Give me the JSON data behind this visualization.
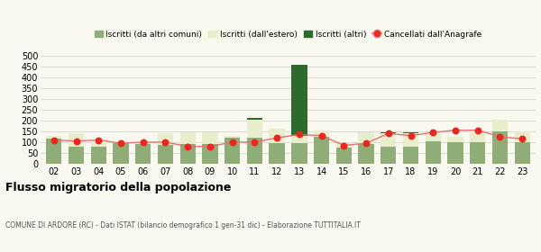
{
  "years": [
    "02",
    "03",
    "04",
    "05",
    "06",
    "07",
    "08",
    "09",
    "10",
    "11",
    "12",
    "13",
    "14",
    "15",
    "16",
    "17",
    "18",
    "19",
    "20",
    "21",
    "22",
    "23"
  ],
  "iscritti_altri_comuni": [
    115,
    80,
    78,
    95,
    92,
    88,
    90,
    90,
    120,
    120,
    95,
    95,
    125,
    75,
    90,
    80,
    80,
    105,
    100,
    100,
    150,
    100
  ],
  "iscritti_estero": [
    15,
    60,
    35,
    5,
    5,
    55,
    55,
    55,
    10,
    85,
    65,
    35,
    30,
    20,
    55,
    60,
    60,
    40,
    25,
    50,
    55,
    50
  ],
  "iscritti_altri": [
    0,
    0,
    0,
    0,
    0,
    0,
    0,
    0,
    0,
    5,
    0,
    325,
    0,
    0,
    0,
    5,
    5,
    0,
    0,
    0,
    0,
    0
  ],
  "cancellati": [
    110,
    105,
    110,
    95,
    100,
    100,
    80,
    80,
    100,
    100,
    120,
    135,
    130,
    85,
    95,
    140,
    130,
    145,
    155,
    155,
    125,
    115
  ],
  "color_altri_comuni": "#8fad76",
  "color_estero": "#e8eecc",
  "color_altri": "#2d6a2d",
  "color_cancellati": "#e8281e",
  "color_cancellati_line": "#e87070",
  "bg_color": "#f9f9f0",
  "grid_color": "#cccccc",
  "title": "Flusso migratorio della popolazione",
  "subtitle": "COMUNE DI ARDORE (RC) - Dati ISTAT (bilancio demografico 1 gen-31 dic) - Elaborazione TUTTITALIA.IT",
  "legend_labels": [
    "Iscritti (da altri comuni)",
    "Iscritti (dall'estero)",
    "Iscritti (altri)",
    "Cancellati dall'Anagrafe"
  ],
  "ylim": [
    0,
    500
  ],
  "yticks": [
    0,
    50,
    100,
    150,
    200,
    250,
    300,
    350,
    400,
    450,
    500
  ]
}
